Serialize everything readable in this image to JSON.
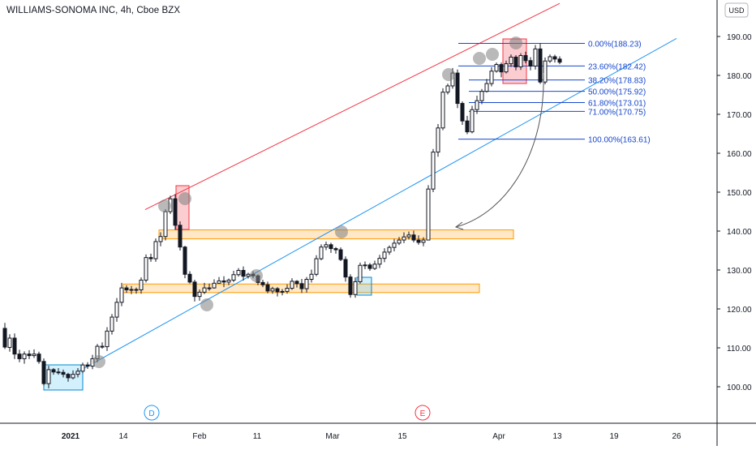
{
  "header": {
    "title": "WILLIAMS-SONOMA INC, 4h, Cboe BZX",
    "currency_button": "USD"
  },
  "colors": {
    "bull": "#ffffff",
    "bear": "#131722",
    "fib": "#1848cc",
    "resistance_line": "#f23645",
    "support_line": "#2196f3",
    "zone": "#ff9800",
    "circle": "#808080"
  },
  "chart_data": {
    "type": "candlestick",
    "title": "WILLIAMS-SONOMA INC, 4h, Cboe BZX",
    "ylabel": "USD",
    "ylim": [
      90,
      193
    ],
    "y_ticks": [
      100,
      110,
      120,
      130,
      140,
      150,
      160,
      170,
      180,
      190
    ],
    "y_tick_labels": [
      "100.00",
      "110.00",
      "120.00",
      "130.00",
      "140.00",
      "150.00",
      "160.00",
      "170.00",
      "180.00",
      "190.00"
    ],
    "x_tick_labels": [
      "2021",
      "14",
      "Feb",
      "11",
      "Mar",
      "15",
      "Apr",
      "13",
      "19",
      "26"
    ],
    "events": [
      "D",
      "E"
    ],
    "fibonacci": [
      {
        "level": "0.0%",
        "price": 188.23,
        "label": "0.00%(188.23)"
      },
      {
        "level": "23.6%",
        "price": 182.42,
        "label": "23.60%(182.42)"
      },
      {
        "level": "38.2%",
        "price": 178.83,
        "label": "38.20%(178.83)"
      },
      {
        "level": "50.0%",
        "price": 175.92,
        "label": "50.00%(175.92)"
      },
      {
        "level": "61.8%",
        "price": 173.01,
        "label": "61.80%(173.01)"
      },
      {
        "level": "71.0%",
        "price": 170.75,
        "label": "71.00%(170.75)"
      },
      {
        "level": "100.0%",
        "price": 163.61,
        "label": "100.00%(163.61)"
      }
    ],
    "zones": [
      {
        "from": 138.0,
        "to": 140.3
      },
      {
        "from": 124.2,
        "to": 126.4
      }
    ],
    "trendlines": [
      {
        "name": "resistance",
        "from": [
          28.8,
          145.5
        ],
        "to": [
          114.0,
          198.5
        ]
      },
      {
        "name": "support",
        "from": [
          14.5,
          103.5
        ],
        "to": [
          138.0,
          189.5
        ]
      }
    ],
    "candles": [
      [
        115.0,
        110.2,
        116.4,
        109.7
      ],
      [
        110.1,
        112.5,
        113.5,
        109.0
      ],
      [
        112.5,
        108.4,
        113.7,
        107.1
      ],
      [
        108.4,
        107.2,
        109.5,
        106.3
      ],
      [
        107.2,
        108.4,
        109.1,
        105.9
      ],
      [
        108.4,
        108.0,
        109.4,
        107.1
      ],
      [
        108.0,
        108.4,
        109.6,
        107.4
      ],
      [
        108.4,
        106.5,
        109.0,
        105.9
      ],
      [
        106.5,
        100.8,
        107.3,
        100.3
      ],
      [
        100.8,
        104.4,
        105.4,
        99.6
      ],
      [
        104.4,
        103.8,
        104.8,
        103.1
      ],
      [
        103.8,
        103.7,
        104.8,
        103.1
      ],
      [
        103.7,
        103.2,
        104.4,
        102.4
      ],
      [
        103.2,
        102.3,
        103.6,
        101.3
      ],
      [
        102.3,
        103.2,
        104.2,
        101.9
      ],
      [
        103.2,
        104.0,
        104.8,
        102.4
      ],
      [
        104.0,
        105.6,
        106.2,
        103.5
      ],
      [
        105.6,
        105.3,
        106.3,
        104.6
      ],
      [
        105.3,
        107.2,
        108.2,
        104.5
      ],
      [
        107.2,
        110.4,
        111.0,
        106.3
      ],
      [
        110.4,
        110.3,
        111.4,
        109.8
      ],
      [
        110.3,
        114.3,
        115.3,
        109.2
      ],
      [
        114.3,
        117.9,
        118.7,
        113.4
      ],
      [
        117.9,
        121.7,
        122.8,
        116.7
      ],
      [
        121.7,
        125.4,
        126.7,
        120.7
      ],
      [
        125.4,
        124.9,
        126.1,
        124.1
      ],
      [
        124.9,
        125.0,
        125.9,
        123.8
      ],
      [
        125.0,
        124.9,
        125.5,
        123.9
      ],
      [
        124.9,
        127.4,
        128.1,
        123.9
      ],
      [
        127.4,
        133.2,
        134.0,
        126.8
      ],
      [
        133.2,
        132.9,
        134.2,
        132.1
      ],
      [
        132.9,
        137.3,
        138.1,
        132.1
      ],
      [
        137.3,
        138.6,
        139.7,
        136.1
      ],
      [
        138.6,
        145.0,
        145.6,
        137.6
      ],
      [
        145.0,
        148.3,
        149.1,
        144.4
      ],
      [
        148.3,
        141.5,
        149.5,
        140.3
      ],
      [
        141.5,
        135.9,
        142.5,
        135.0
      ],
      [
        135.9,
        128.9,
        136.2,
        127.9
      ],
      [
        128.9,
        126.9,
        129.7,
        126.5
      ],
      [
        126.9,
        123.2,
        127.5,
        121.9
      ],
      [
        123.2,
        124.3,
        125.0,
        122.1
      ],
      [
        124.3,
        125.4,
        126.7,
        123.8
      ],
      [
        125.4,
        125.4,
        126.5,
        124.7
      ],
      [
        125.4,
        126.6,
        127.6,
        125.2
      ],
      [
        126.6,
        127.2,
        128.2,
        126.5
      ],
      [
        127.2,
        126.9,
        128.4,
        125.6
      ],
      [
        126.9,
        127.4,
        127.8,
        126.1
      ],
      [
        127.4,
        128.8,
        129.8,
        126.9
      ],
      [
        128.8,
        129.9,
        130.5,
        128.3
      ],
      [
        129.9,
        128.4,
        130.9,
        127.3
      ],
      [
        128.4,
        128.9,
        129.3,
        127.8
      ],
      [
        128.9,
        128.5,
        129.7,
        127.9
      ],
      [
        128.5,
        126.8,
        128.9,
        126.1
      ],
      [
        126.8,
        126.2,
        127.5,
        125.6
      ],
      [
        126.2,
        124.6,
        127.0,
        124.0
      ],
      [
        124.6,
        125.2,
        125.7,
        123.9
      ],
      [
        125.2,
        124.4,
        125.6,
        123.2
      ],
      [
        124.4,
        124.5,
        125.1,
        123.5
      ],
      [
        124.5,
        125.3,
        126.3,
        123.9
      ],
      [
        125.3,
        127.1,
        127.9,
        124.9
      ],
      [
        127.1,
        126.5,
        127.4,
        125.5
      ],
      [
        126.5,
        125.2,
        127.7,
        124.1
      ],
      [
        125.2,
        127.6,
        128.2,
        124.2
      ],
      [
        127.6,
        128.9,
        130.1,
        126.8
      ],
      [
        128.9,
        132.9,
        133.8,
        128.4
      ],
      [
        132.9,
        135.9,
        136.6,
        132.5
      ],
      [
        135.9,
        136.5,
        137.3,
        135.1
      ],
      [
        136.5,
        135.5,
        137.0,
        134.4
      ],
      [
        135.5,
        135.2,
        135.9,
        134.2
      ],
      [
        135.2,
        132.7,
        135.8,
        132.3
      ],
      [
        132.7,
        128.2,
        133.5,
        127.0
      ],
      [
        128.2,
        123.7,
        128.9,
        122.9
      ],
      [
        123.7,
        127.0,
        128.1,
        122.9
      ],
      [
        127.0,
        131.2,
        131.9,
        126.5
      ],
      [
        131.2,
        131.3,
        132.2,
        130.2
      ],
      [
        131.3,
        130.4,
        131.8,
        129.8
      ],
      [
        130.4,
        131.5,
        132.4,
        130.0
      ],
      [
        131.5,
        133.0,
        133.9,
        130.5
      ],
      [
        133.0,
        134.6,
        135.6,
        132.0
      ],
      [
        134.6,
        135.8,
        136.3,
        133.9
      ],
      [
        135.8,
        136.9,
        138.0,
        134.8
      ],
      [
        136.9,
        137.7,
        138.5,
        136.4
      ],
      [
        137.7,
        138.5,
        139.7,
        136.9
      ],
      [
        138.5,
        139.0,
        139.9,
        137.8
      ],
      [
        139.0,
        137.7,
        140.1,
        137.1
      ],
      [
        137.7,
        137.1,
        138.9,
        136.5
      ],
      [
        137.1,
        137.7,
        138.4,
        136.1
      ],
      [
        137.7,
        150.8,
        151.8,
        137.7
      ],
      [
        150.8,
        160.3,
        161.1,
        150.0
      ],
      [
        160.3,
        166.5,
        167.5,
        159.1
      ],
      [
        166.5,
        175.7,
        176.7,
        165.9
      ],
      [
        175.7,
        177.3,
        177.9,
        175.1
      ],
      [
        177.3,
        180.6,
        181.9,
        176.6
      ],
      [
        180.6,
        172.8,
        181.5,
        171.6
      ],
      [
        172.8,
        168.3,
        173.3,
        167.3
      ],
      [
        168.3,
        165.5,
        169.6,
        164.9
      ],
      [
        165.5,
        171.2,
        172.2,
        165.1
      ],
      [
        171.2,
        173.5,
        174.8,
        170.1
      ],
      [
        173.5,
        175.9,
        176.5,
        172.6
      ],
      [
        175.9,
        177.9,
        179.1,
        175.6
      ],
      [
        177.9,
        181.1,
        182.1,
        177.2
      ],
      [
        181.1,
        182.8,
        183.3,
        180.7
      ],
      [
        182.8,
        180.9,
        183.3,
        179.5
      ],
      [
        180.9,
        183.0,
        183.8,
        180.5
      ],
      [
        183.0,
        184.7,
        185.4,
        182.2
      ],
      [
        184.7,
        182.2,
        185.2,
        181.3
      ],
      [
        182.2,
        185.1,
        185.7,
        181.4
      ],
      [
        185.1,
        183.8,
        186.1,
        183.1
      ],
      [
        183.8,
        182.4,
        184.7,
        181.3
      ],
      [
        182.4,
        186.8,
        187.8,
        181.5
      ],
      [
        186.8,
        178.3,
        188.2,
        177.8
      ],
      [
        178.3,
        183.7,
        184.6,
        177.7
      ],
      [
        183.7,
        184.8,
        185.4,
        183.2
      ],
      [
        184.8,
        184.2,
        185.3,
        183.3
      ],
      [
        184.2,
        183.4,
        184.9,
        182.9
      ]
    ]
  }
}
